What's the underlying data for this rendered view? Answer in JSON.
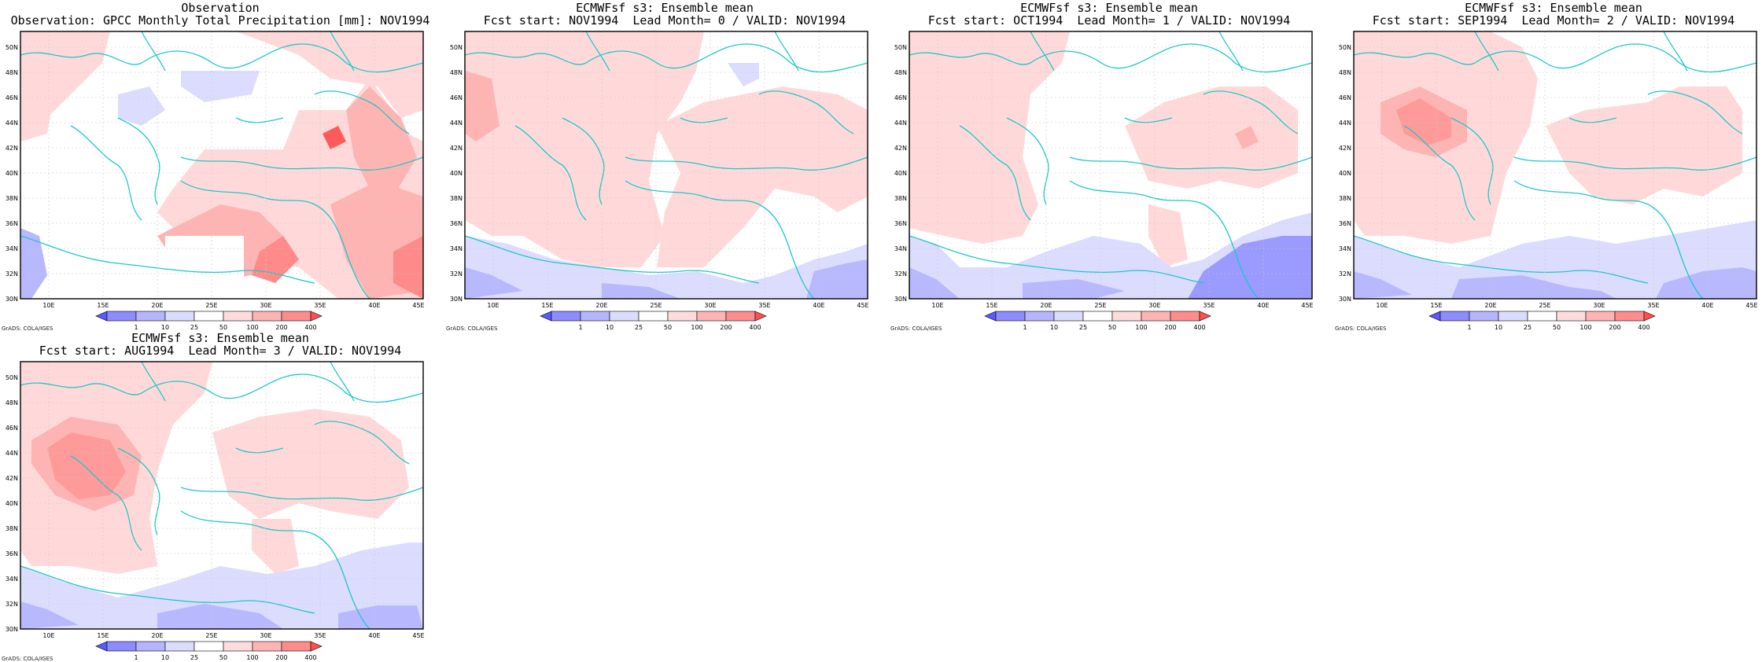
{
  "colors": {
    "coast": "#1ec8c8",
    "grid": "#c8c8c8",
    "frame": "#000000",
    "red_light": "#ffd9d9",
    "red_mid": "#ffb4b4",
    "red_strong": "#ff8a8a",
    "red_dark": "#ff5a5a",
    "blue_light": "#dcdcff",
    "blue_mid": "#b8b8ff",
    "blue_strong": "#9a9aff",
    "blue_dark": "#6a6aff"
  },
  "axes": {
    "lon_ticks": [
      "10E",
      "15E",
      "20E",
      "25E",
      "30E",
      "35E",
      "40E",
      "45E"
    ],
    "lat_ticks": [
      "50N",
      "48N",
      "46N",
      "44N",
      "42N",
      "40N",
      "38N",
      "36N",
      "34N",
      "32N",
      "30N"
    ]
  },
  "colorbar": {
    "labels": [
      "1",
      "10",
      "25",
      "50",
      "100",
      "200",
      "400"
    ],
    "colors": [
      "#5a5aff",
      "#8c8cff",
      "#b4b4ff",
      "#dcdcff",
      "#ffdcdc",
      "#ffb4b4",
      "#ff8c8c",
      "#ff5050"
    ]
  },
  "credit": "GrADS: COLA/IGES",
  "panels": [
    {
      "title1": "Observation",
      "title2": "Observation: GPCC Monthly Total Precipitation [mm]: NOV1994",
      "icon": "observation-map"
    },
    {
      "title1": "ECMWFsf s3: Ensemble mean",
      "title2": "Fcst start: NOV1994  Lead Month= 0 / VALID: NOV1994",
      "icon": "forecast-map"
    },
    {
      "title1": "ECMWFsf s3: Ensemble mean",
      "title2": "Fcst start: OCT1994  Lead Month= 1 / VALID: NOV1994",
      "icon": "forecast-map"
    },
    {
      "title1": "ECMWFsf s3: Ensemble mean",
      "title2": "Fcst start: SEP1994  Lead Month= 2 / VALID: NOV1994",
      "icon": "forecast-map"
    },
    {
      "title1": "ECMWFsf s3: Ensemble mean",
      "title2": "Fcst start: AUG1994  Lead Month= 3 / VALID: NOV1994",
      "icon": "forecast-map"
    }
  ]
}
